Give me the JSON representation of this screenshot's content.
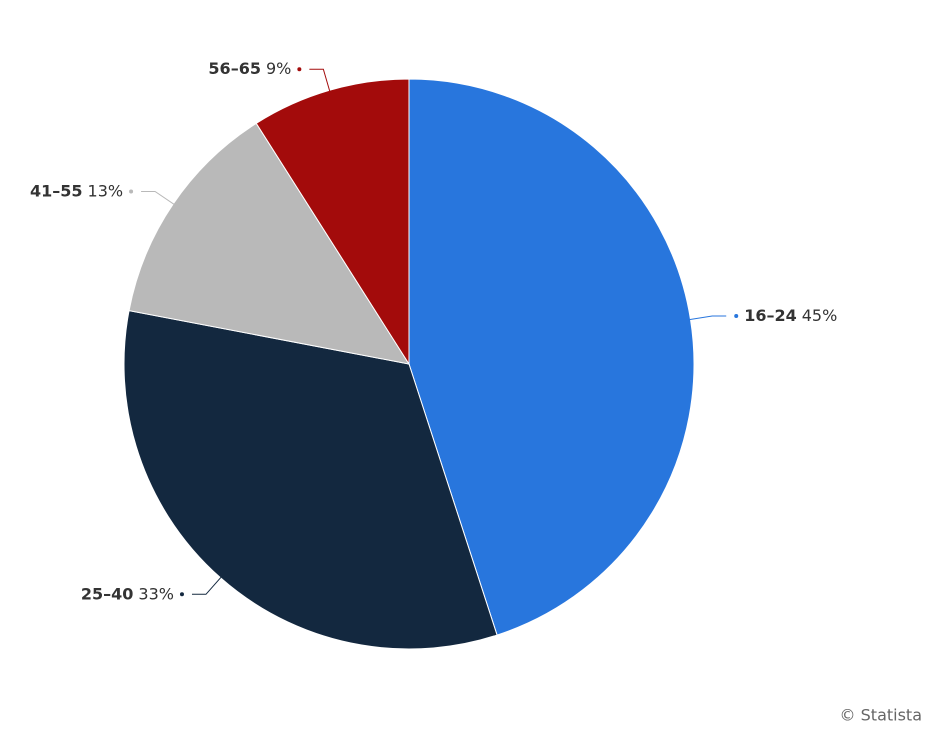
{
  "chart_data": {
    "type": "pie",
    "categories": [
      "16–24",
      "25–40",
      "41–55",
      "56–65"
    ],
    "values": [
      45,
      33,
      13,
      9
    ],
    "value_labels": [
      "45%",
      "33%",
      "13%",
      "9%"
    ],
    "colors": [
      "#2876dd",
      "#13283f",
      "#b9b9b9",
      "#a30b0b"
    ],
    "credit": "© Statista"
  }
}
